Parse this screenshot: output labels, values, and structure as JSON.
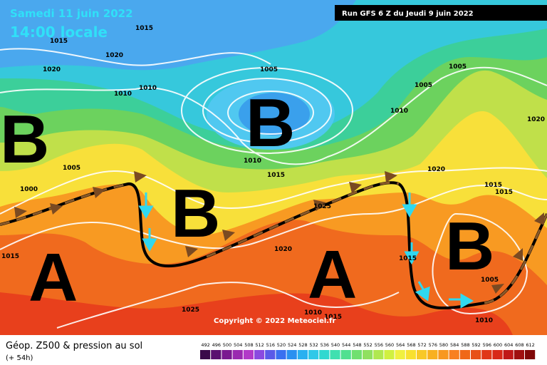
{
  "header": {
    "date": "Samedi 11 juin 2022",
    "time": "14:00 locale",
    "run": "Run GFS 6 Z du Jeudi 9 juin 2022"
  },
  "copyright": "Copyright © 2022 Meteociel.fr",
  "footer": {
    "title": "Géop. Z500 & pression au sol",
    "lead": "(+ 54h)"
  },
  "pressure_centers": [
    "B",
    "B",
    "B",
    "A",
    "A",
    "B"
  ],
  "isobar_labels": [
    "1015",
    "1015",
    "1020",
    "1010",
    "1010",
    "1005",
    "1005",
    "1005",
    "1010",
    "1010",
    "1020",
    "1005",
    "1000",
    "1015",
    "1020",
    "1015",
    "1015",
    "1025",
    "1020",
    "1015",
    "1025",
    "1010",
    "1015",
    "1005",
    "1010",
    "1015",
    "1020"
  ],
  "scale": {
    "values": [
      492,
      496,
      500,
      504,
      508,
      512,
      516,
      520,
      524,
      528,
      532,
      536,
      540,
      544,
      548,
      552,
      556,
      560,
      564,
      568,
      572,
      576,
      580,
      584,
      588,
      592,
      596,
      600,
      604,
      608,
      612
    ],
    "colors": [
      "#3a0a4a",
      "#5a1070",
      "#7a1a90",
      "#9a2ab0",
      "#b23ac8",
      "#8a4ae0",
      "#5a5ae8",
      "#3a70f0",
      "#2a90f0",
      "#2ab0f0",
      "#30c8e8",
      "#30d8d0",
      "#40e0b0",
      "#50e090",
      "#70e070",
      "#90e060",
      "#b0e850",
      "#d0f040",
      "#f0f040",
      "#f8e030",
      "#f8c828",
      "#f8b020",
      "#f89820",
      "#f88020",
      "#f06818",
      "#e85018",
      "#e03818",
      "#d82818",
      "#c01818",
      "#a01010",
      "#800808"
    ]
  }
}
